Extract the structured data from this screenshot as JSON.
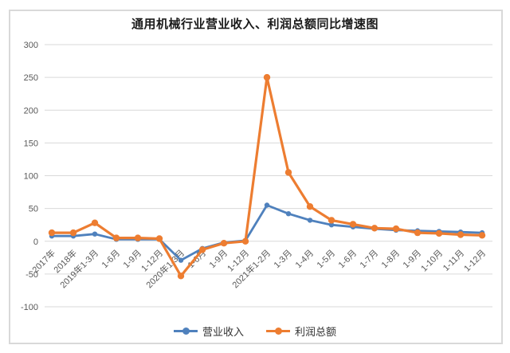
{
  "window": {
    "background_color": "#ffffff",
    "frame_border_color": "#d9d9d9"
  },
  "chart": {
    "title": "通用机械行业营业收入、利润总额同比增速图",
    "grid_color": "#d9d9d9",
    "axis_label_color": "#595959",
    "title_color": "#1a1a1a"
  },
  "legend": {
    "items": [
      {
        "label": "营业收入",
        "color": "#4f81bd"
      },
      {
        "label": "利润总额",
        "color": "#ed7d31"
      }
    ]
  },
  "chart_data": {
    "type": "line",
    "title": "通用机械行业营业收入、利润总额同比增速图",
    "xlabel": "",
    "ylabel": "",
    "grid": true,
    "legend_position": "bottom",
    "ylim": [
      -100,
      300
    ],
    "yticks": [
      300,
      250,
      200,
      150,
      100,
      50,
      0,
      -50,
      -100
    ],
    "categories": [
      "2017年",
      "2018年",
      "2019年1-3月",
      "1-6月",
      "1-9月",
      "1-12月",
      "2020年1-3月",
      "1-6月",
      "1-9月",
      "1-12月",
      "2021年1-2月",
      "1-3月",
      "1-4月",
      "1-5月",
      "1-6月",
      "1-7月",
      "1-8月",
      "1-9月",
      "1-10月",
      "1-11月",
      "1-12月"
    ],
    "series": [
      {
        "name": "营业收入",
        "color": "#4f81bd",
        "values": [
          8,
          8,
          11,
          3,
          3,
          3,
          -29,
          -11,
          -2,
          1,
          55,
          42,
          32,
          25,
          22,
          19,
          17,
          16,
          15,
          14,
          13
        ]
      },
      {
        "name": "利润总额",
        "color": "#ed7d31",
        "values": [
          13,
          13,
          28,
          5,
          5,
          4,
          -53,
          -13,
          -3,
          0,
          250,
          105,
          53,
          32,
          26,
          20,
          19,
          13,
          12,
          10,
          9
        ]
      }
    ]
  }
}
